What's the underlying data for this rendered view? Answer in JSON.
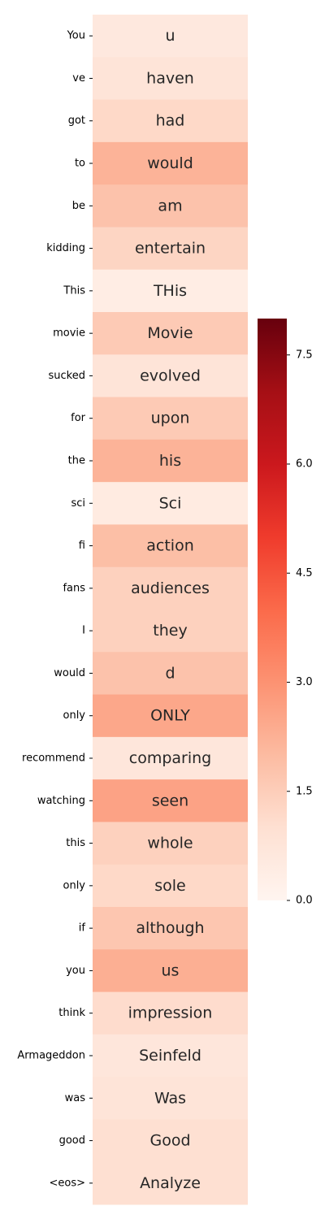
{
  "chart_data": {
    "type": "heatmap",
    "title": "",
    "xlabel": "",
    "ylabel": "",
    "rows": [
      "You",
      "ve",
      "got",
      "to",
      "be",
      "kidding",
      "This",
      "movie",
      "sucked",
      "for",
      "the",
      "sci",
      "fi",
      "fans",
      "I",
      "would",
      "only",
      "recommend",
      "watching",
      "this",
      "only",
      "if",
      "you",
      "think",
      "Armageddon",
      "was",
      "good",
      "<eos>"
    ],
    "annotations": [
      "u",
      "haven",
      "had",
      "would",
      "am",
      "entertain",
      "THis",
      "Movie",
      "evolved",
      "upon",
      "his",
      "Sci",
      "action",
      "audiences",
      "they",
      "d",
      "ONLY",
      "comparing",
      "seen",
      "whole",
      "sole",
      "although",
      "us",
      "impression",
      "Seinfeld",
      "Was",
      "Good",
      "Analyze"
    ],
    "values": [
      0.6,
      0.8,
      1.2,
      2.2,
      1.8,
      1.3,
      0.4,
      1.6,
      0.8,
      1.6,
      2.2,
      0.5,
      1.9,
      1.4,
      1.4,
      1.8,
      2.5,
      0.7,
      2.6,
      1.4,
      1.2,
      1.7,
      2.3,
      1.1,
      0.7,
      0.8,
      1.0,
      1.0
    ],
    "colorbar": {
      "min": 0.0,
      "max": 8.0,
      "ticks": [
        0.0,
        1.5,
        3.0,
        4.5,
        6.0,
        7.5
      ],
      "tick_labels": [
        "0.0",
        "1.5",
        "3.0",
        "4.5",
        "6.0",
        "7.5"
      ],
      "colormap": "Reds"
    },
    "legend_placement": "right",
    "grid": false
  },
  "colors": {
    "stops": [
      "#fff5f0",
      "#fee0d2",
      "#fcbba1",
      "#fc9272",
      "#fb6a4a",
      "#ef3b2c",
      "#cb181d",
      "#a50f15",
      "#67000d"
    ],
    "text": "#262626"
  }
}
